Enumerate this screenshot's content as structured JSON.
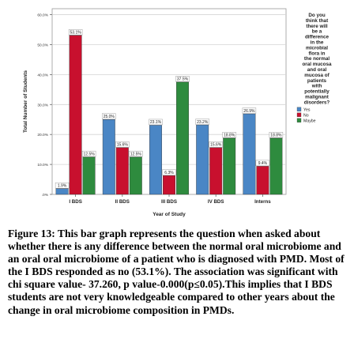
{
  "chart_data": {
    "type": "bar",
    "title": "",
    "xlabel": "Year of Study",
    "ylabel": "Total Number of Students",
    "categories": [
      "I BDS",
      "II BDS",
      "III BDS",
      "IV BDS",
      "Interns"
    ],
    "y_ticks": [
      ".0%",
      "10.0%",
      "20.0%",
      "30.0%",
      "40.0%",
      "50.0%",
      "60.0%"
    ],
    "ylim": [
      0,
      62
    ],
    "grid": true,
    "legend_position": "right",
    "legend_title": "Do you think that there will be a difference in the microbial flora in the normal oral mucosa and oral mucosa of patients with potentially malignant disorders?",
    "series": [
      {
        "name": "Yes",
        "color": "#4a86c5",
        "values": [
          1.9,
          25.0,
          23.1,
          23.2,
          26.9
        ],
        "labels": [
          "1.9%",
          "25.0%",
          "23.1%",
          "23.2%",
          "26.9%"
        ]
      },
      {
        "name": "No",
        "color": "#c8102e",
        "values": [
          53.1,
          15.6,
          6.3,
          15.6,
          9.4
        ],
        "labels": [
          "53.1%",
          "15.6%",
          "6.3%",
          "15.6%",
          "9.4%"
        ]
      },
      {
        "name": "Maybe",
        "color": "#2e8b3e",
        "values": [
          12.5,
          12.5,
          37.5,
          18.8,
          18.8
        ],
        "labels": [
          "12.5%",
          "12.5%",
          "37.5%",
          "18.8%",
          "18.8%"
        ]
      }
    ]
  },
  "caption": {
    "label": "Figure 13:",
    "text": " This bar graph represents the question when asked about whether there is any difference between the normal oral microbiome and an oral oral microbiome of a patient who is diagnosed with PMD. Most of the I BDS responded as no (53.1%). The association was significant with chi square value- 37.260, p value-0.000(p≤0.05).This implies that I BDS students are not very knowledgeable compared to other years about the change in oral microbiome composition in PMDs."
  }
}
